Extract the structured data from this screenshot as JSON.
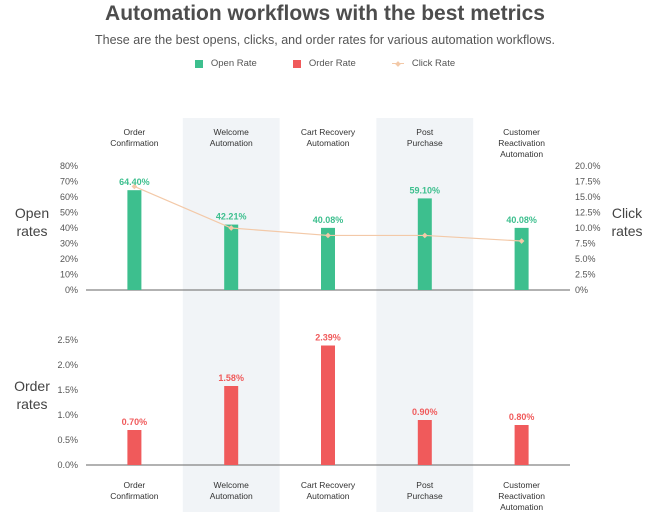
{
  "title": "Automation workflows with the best metrics",
  "subtitle": "These are the best opens, clicks, and order rates for various automation workflows.",
  "legend": {
    "open_rate": "Open Rate",
    "order_rate": "Order Rate",
    "click_rate": "Click Rate"
  },
  "colors": {
    "open_rate": "#3dbf8e",
    "order_rate": "#f05a5b",
    "click_rate": "#f3c9a8",
    "band": "#f1f4f7"
  },
  "chart_data": {
    "type": "bar",
    "categories": [
      [
        "Order",
        "Confirmation"
      ],
      [
        "Welcome",
        "Automation"
      ],
      [
        "Cart Recovery",
        "Automation"
      ],
      [
        "Post",
        "Purchase"
      ],
      [
        "Customer",
        "Reactivation",
        "Automation"
      ]
    ],
    "top_panel": {
      "left_axis_label": [
        "Open",
        "rates"
      ],
      "right_axis_label": [
        "Click",
        "rates"
      ],
      "left_ticks": [
        "80%",
        "70%",
        "60%",
        "50%",
        "40%",
        "30%",
        "20%",
        "10%",
        "0%"
      ],
      "right_ticks": [
        "20.0%",
        "17.5%",
        "15.0%",
        "12.5%",
        "10.0%",
        "7.5%",
        "5.0%",
        "2.5%",
        "0%"
      ],
      "ylim_left": [
        0,
        80
      ],
      "ylim_right": [
        0,
        20
      ],
      "series": [
        {
          "name": "Open Rate",
          "type": "bar",
          "values": [
            64.4,
            42.21,
            40.08,
            59.1,
            40.08
          ],
          "labels": [
            "64.40%",
            "42.21%",
            "40.08%",
            "59.10%",
            "40.08%"
          ]
        },
        {
          "name": "Click Rate",
          "type": "line",
          "axis": "right",
          "values": [
            16.7,
            10.0,
            8.8,
            8.8,
            7.9
          ]
        }
      ]
    },
    "bottom_panel": {
      "left_axis_label": [
        "Order",
        "rates"
      ],
      "left_ticks": [
        "2.5%",
        "2.0%",
        "1.5%",
        "1.0%",
        "0.5%",
        "0.0%"
      ],
      "ylim": [
        0,
        2.5
      ],
      "series": [
        {
          "name": "Order Rate",
          "type": "bar",
          "values": [
            0.7,
            1.58,
            2.39,
            0.9,
            0.8
          ],
          "labels": [
            "0.70%",
            "1.58%",
            "2.39%",
            "0.90%",
            "0.80%"
          ]
        }
      ]
    }
  }
}
